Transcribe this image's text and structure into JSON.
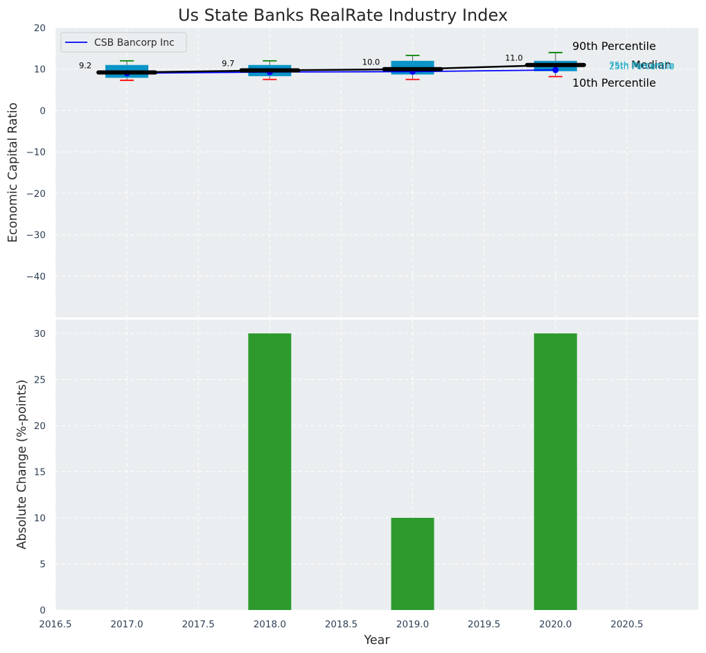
{
  "chart_data": [
    {
      "type": "box",
      "title": "Us State Banks RealRate Industry Index",
      "ylabel": "Economic Capital Ratio",
      "xlabel": "",
      "xlim": [
        2016.5,
        2021.0
      ],
      "ylim": [
        -50,
        20
      ],
      "yticks": [
        20,
        10,
        0,
        -10,
        -20,
        -30,
        -40
      ],
      "ytick_labels": [
        "20",
        "10",
        "0",
        "−10",
        "−20",
        "−30",
        "−40"
      ],
      "grid": true,
      "legend": {
        "position": "top-left",
        "entries": [
          "CSB Bancorp Inc"
        ]
      },
      "series": [
        {
          "name": "CSB Bancorp Inc",
          "x": [
            2017,
            2018,
            2019,
            2020
          ],
          "values": [
            9.0,
            9.3,
            9.4,
            9.8
          ],
          "color": "#0000ff"
        }
      ],
      "boxes": [
        {
          "x": 2017,
          "p10": 7.3,
          "p25": 7.9,
          "median": 9.2,
          "p75": 11.0,
          "p90": 12.0,
          "label": "9.2"
        },
        {
          "x": 2018,
          "p10": 7.5,
          "p25": 8.3,
          "median": 9.7,
          "p75": 11.0,
          "p90": 12.0,
          "label": "9.7"
        },
        {
          "x": 2019,
          "p10": 7.5,
          "p25": 8.7,
          "median": 10.0,
          "p75": 12.0,
          "p90": 13.3,
          "label": "10.0"
        },
        {
          "x": 2020,
          "p10": 8.2,
          "p25": 9.5,
          "median": 11.0,
          "p75": 12.0,
          "p90": 14.0,
          "label": "11.0"
        }
      ],
      "annotations": {
        "p90": "90th Percentile",
        "median": "Median",
        "p10": "10th Percentile",
        "p75": "75th Percentile",
        "p25": "25th Percentile"
      },
      "colors": {
        "box": "#0a94c8",
        "median_line": "#000000",
        "whisker_top": "#008000",
        "whisker_bottom": "#ff0000",
        "company": "#0000ff"
      }
    },
    {
      "type": "bar",
      "title": "",
      "ylabel": "Absolute Change (%-points)",
      "xlabel": "Year",
      "xlim": [
        2016.5,
        2021.0
      ],
      "ylim": [
        0,
        31.5
      ],
      "yticks": [
        0,
        5,
        10,
        15,
        20,
        25,
        30
      ],
      "xticks": [
        2016.5,
        2017.0,
        2017.5,
        2018.0,
        2018.5,
        2019.0,
        2019.5,
        2020.0,
        2020.5
      ],
      "xtick_labels": [
        "2016.5",
        "2017.0",
        "2017.5",
        "2018.0",
        "2018.5",
        "2019.0",
        "2019.5",
        "2020.0",
        "2020.5"
      ],
      "grid": true,
      "x": [
        2017,
        2018,
        2019,
        2020
      ],
      "values": [
        0,
        30,
        10,
        30
      ],
      "color": "#2e9a2e"
    }
  ]
}
